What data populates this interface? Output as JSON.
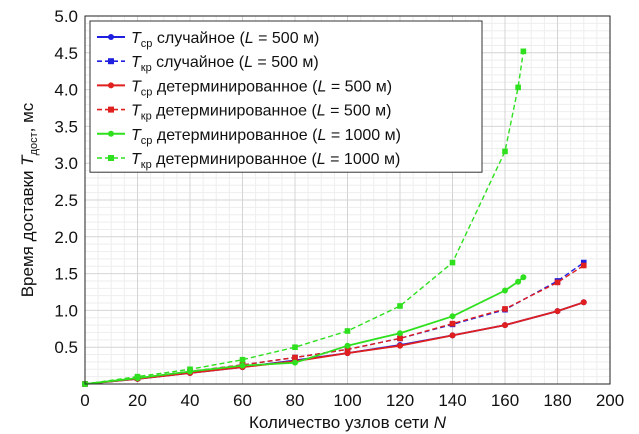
{
  "chart_data": {
    "type": "line",
    "xlabel": {
      "text": "Количество узлов сети ",
      "var": "N"
    },
    "ylabel": {
      "prefix": "Время доставки ",
      "var": "T",
      "sub": "дост",
      "suffix": ", мс"
    },
    "xlim": [
      0,
      200
    ],
    "ylim": [
      0,
      5.0
    ],
    "xticks": [
      "0",
      "20",
      "40",
      "60",
      "80",
      "100",
      "120",
      "140",
      "160",
      "180",
      "200"
    ],
    "yticks": [
      "0.5",
      "1.0",
      "1.5",
      "2.0",
      "2.5",
      "3.0",
      "3.5",
      "4.0",
      "4.5",
      "5.0"
    ],
    "grid": true,
    "legend_position": "top-left",
    "series": [
      {
        "legend": {
          "var": "T",
          "sub": "ср",
          "desc": " случайное (",
          "lvar": "L",
          "eq": " = 500 м)"
        },
        "color": "#1f1fe0",
        "style": "solid",
        "marker": "circle",
        "x": [
          0,
          20,
          40,
          60,
          80,
          100,
          120,
          140,
          160,
          180,
          190
        ],
        "y": [
          0.0,
          0.07,
          0.15,
          0.23,
          0.32,
          0.42,
          0.53,
          0.66,
          0.8,
          0.99,
          1.11
        ]
      },
      {
        "legend": {
          "var": "T",
          "sub": "кр",
          "desc": " случайное (",
          "lvar": "L",
          "eq": " = 500 м)"
        },
        "color": "#1f1fe0",
        "style": "dashed",
        "marker": "square",
        "x": [
          0,
          20,
          40,
          60,
          80,
          100,
          120,
          140,
          160,
          180,
          190
        ],
        "y": [
          0.0,
          0.08,
          0.17,
          0.26,
          0.36,
          0.47,
          0.62,
          0.81,
          1.01,
          1.4,
          1.65
        ]
      },
      {
        "legend": {
          "var": "T",
          "sub": "ср",
          "desc": " детерминированное (",
          "lvar": "L",
          "eq": " = 500 м)"
        },
        "color": "#e01f1f",
        "style": "solid",
        "marker": "circle",
        "x": [
          0,
          20,
          40,
          60,
          80,
          100,
          120,
          140,
          160,
          180,
          190
        ],
        "y": [
          0.0,
          0.07,
          0.15,
          0.23,
          0.31,
          0.42,
          0.52,
          0.66,
          0.8,
          0.99,
          1.11
        ]
      },
      {
        "legend": {
          "var": "T",
          "sub": "кр",
          "desc": " детерминированное (",
          "lvar": "L",
          "eq": " = 500 м)"
        },
        "color": "#e01f1f",
        "style": "dashed",
        "marker": "square",
        "x": [
          0,
          20,
          40,
          60,
          80,
          100,
          120,
          140,
          160,
          180,
          190
        ],
        "y": [
          0.0,
          0.08,
          0.17,
          0.26,
          0.36,
          0.47,
          0.62,
          0.82,
          1.02,
          1.38,
          1.61
        ]
      },
      {
        "legend": {
          "var": "T",
          "sub": "ср",
          "desc": " детерминированное (",
          "lvar": "L",
          "eq": " = 1000 м)"
        },
        "color": "#2fe01f",
        "style": "solid",
        "marker": "circle",
        "x": [
          0,
          20,
          40,
          60,
          80,
          100,
          120,
          140,
          160,
          165,
          167
        ],
        "y": [
          0.0,
          0.08,
          0.17,
          0.25,
          0.29,
          0.52,
          0.69,
          0.92,
          1.27,
          1.39,
          1.45
        ]
      },
      {
        "legend": {
          "var": "T",
          "sub": "кр",
          "desc": " детерминированное (",
          "lvar": "L",
          "eq": " = 1000 м)"
        },
        "color": "#2fe01f",
        "style": "dashed",
        "marker": "square",
        "x": [
          0,
          20,
          40,
          60,
          80,
          100,
          120,
          140,
          160,
          165,
          167
        ],
        "y": [
          0.0,
          0.1,
          0.2,
          0.33,
          0.5,
          0.72,
          1.06,
          1.65,
          3.16,
          4.03,
          4.52
        ]
      }
    ]
  }
}
